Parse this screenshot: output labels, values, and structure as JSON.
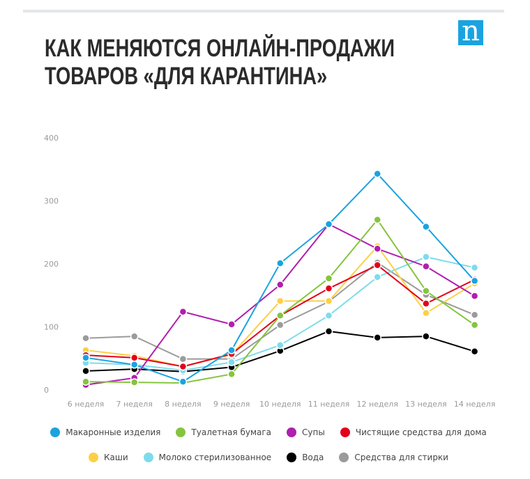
{
  "title_lines": [
    "КАК МЕНЯЮТСЯ ОНЛАЙН-ПРОДАЖИ",
    "ТОВАРОВ «ДЛЯ КАРАНТИНА»"
  ],
  "logo": "n",
  "chart_data": {
    "type": "line",
    "title": "КАК МЕНЯЮТСЯ ОНЛАЙН-ПРОДАЖИ ТОВАРОВ «ДЛЯ КАРАНТИНА»",
    "categories": [
      "6 неделя",
      "7 неделя",
      "8 неделя",
      "9 неделя",
      "10 неделя",
      "11 неделя",
      "12 неделя",
      "13 неделя",
      "14 неделя"
    ],
    "ylim": [
      0,
      400
    ],
    "yticks": [
      0,
      100,
      200,
      300,
      400
    ],
    "grid": false,
    "legend": "bottom",
    "series": [
      {
        "name": "Средства для стирки",
        "color": "#9b9b9b",
        "values": [
          82,
          85,
          49,
          49,
          103,
          140,
          202,
          151,
          119
        ]
      },
      {
        "name": "Вода",
        "color": "#000000",
        "values": [
          30,
          33,
          29,
          36,
          62,
          93,
          83,
          85,
          61
        ]
      },
      {
        "name": "Молоко стерилизованное",
        "color": "#7ddcec",
        "values": [
          43,
          40,
          31,
          44,
          71,
          118,
          179,
          211,
          194
        ]
      },
      {
        "name": "Каши",
        "color": "#fcd046",
        "values": [
          63,
          54,
          37,
          56,
          141,
          141,
          228,
          122,
          169
        ]
      },
      {
        "name": "Чистящие средства для дома",
        "color": "#e3001b",
        "values": [
          55,
          51,
          37,
          57,
          118,
          161,
          198,
          137,
          175
        ]
      },
      {
        "name": "Супы",
        "color": "#b01fae",
        "values": [
          8,
          19,
          124,
          104,
          167,
          263,
          224,
          196,
          149
        ]
      },
      {
        "name": "Туалетная бумага",
        "color": "#85c43f",
        "values": [
          13,
          12,
          11,
          25,
          118,
          177,
          270,
          157,
          103
        ]
      },
      {
        "name": "Макаронные изделия",
        "color": "#1aa3e0",
        "values": [
          51,
          40,
          13,
          63,
          201,
          263,
          343,
          259,
          173
        ]
      }
    ]
  },
  "legend_rows": [
    [
      7,
      6,
      5,
      4
    ],
    [
      3,
      2,
      1,
      0
    ]
  ]
}
